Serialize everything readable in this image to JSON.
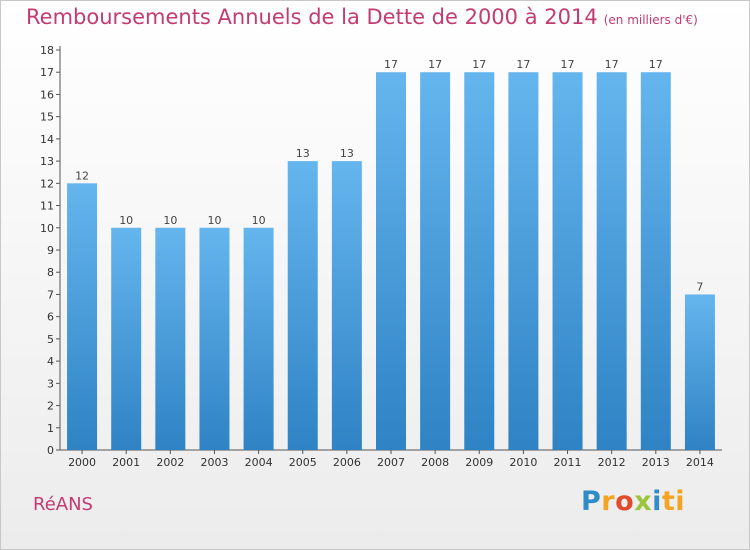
{
  "title": "Remboursements Annuels de la Dette de 2000 à 2014",
  "unit": "(en milliers d'€)",
  "city": "RéANS",
  "logo": [
    "P",
    "r",
    "o",
    "x",
    "i",
    "ti"
  ],
  "colors": {
    "bar_top": "#65b5ee",
    "bar_bottom": "#2f83c4",
    "title": "#c33b72"
  },
  "chart_data": {
    "type": "bar",
    "title": "Remboursements Annuels de la Dette de 2000 à 2014",
    "categories": [
      "2000",
      "2001",
      "2002",
      "2003",
      "2004",
      "2005",
      "2006",
      "2007",
      "2008",
      "2009",
      "2010",
      "2011",
      "2012",
      "2013",
      "2014"
    ],
    "values": [
      12,
      10,
      10,
      10,
      10,
      13,
      13,
      17,
      17,
      17,
      17,
      17,
      17,
      17,
      7
    ],
    "ylim": [
      0,
      18
    ],
    "yticks": [
      0,
      1,
      2,
      3,
      4,
      5,
      6,
      7,
      8,
      9,
      10,
      11,
      12,
      13,
      14,
      15,
      16,
      17,
      18
    ],
    "grid": false,
    "legend": "none"
  }
}
